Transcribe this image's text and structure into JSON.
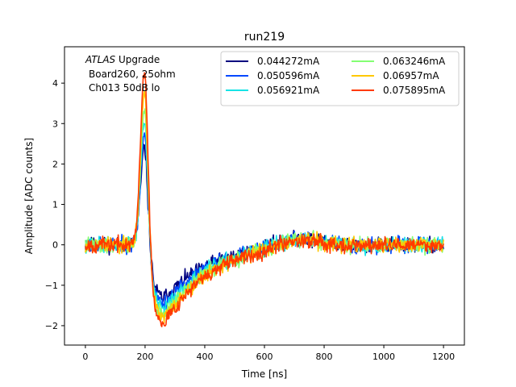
{
  "chart_data": {
    "type": "line",
    "title": "run219",
    "xlabel": "Time [ns]",
    "ylabel": "Amplitude [ADC counts]",
    "xlim": [
      -70,
      1270
    ],
    "ylim": [
      -2.48,
      4.9
    ],
    "xticks": [
      0,
      200,
      400,
      600,
      800,
      1000,
      1200
    ],
    "yticks": [
      -2,
      -1,
      0,
      1,
      2,
      3,
      4
    ],
    "grid": false,
    "legend_position": "top-right",
    "legend_columns": 2,
    "annotation": {
      "line1_italic": "ATLAS",
      "line1_rest": " Upgrade",
      "line2": "Board260, 25ohm",
      "line3": "Ch013 50dB lo"
    },
    "series": [
      {
        "name": "0.044272mA",
        "color": "#00007f",
        "peak": 2.4,
        "trough": -1.4,
        "noise": 0.16,
        "seed": 11
      },
      {
        "name": "0.050596mA",
        "color": "#0048ff",
        "peak": 2.75,
        "trough": -1.55,
        "noise": 0.16,
        "seed": 23
      },
      {
        "name": "0.056921mA",
        "color": "#17e3e6",
        "peak": 3.05,
        "trough": -1.7,
        "noise": 0.16,
        "seed": 37
      },
      {
        "name": "0.063246mA",
        "color": "#84ff73",
        "peak": 3.4,
        "trough": -1.85,
        "noise": 0.16,
        "seed": 41
      },
      {
        "name": "0.06957mA",
        "color": "#ffc800",
        "peak": 3.8,
        "trough": -1.95,
        "noise": 0.16,
        "seed": 53
      },
      {
        "name": "0.075895mA",
        "color": "#ff3a00",
        "peak": 4.35,
        "trough": -2.05,
        "noise": 0.16,
        "seed": 67
      }
    ]
  }
}
